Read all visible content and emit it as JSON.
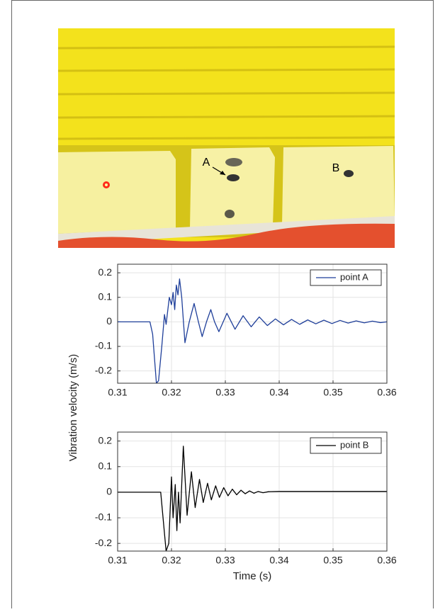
{
  "photo_labels": [
    "A",
    "B"
  ],
  "chart_data": [
    {
      "type": "line",
      "ylabel": "Vibration velocity (m/s)",
      "xlim": [
        0.31,
        0.36
      ],
      "xticks": [
        0.31,
        0.32,
        0.33,
        0.34,
        0.35,
        0.36
      ],
      "ylim": [
        -0.25,
        0.235
      ],
      "yticks": [
        -0.2,
        -0.1,
        0,
        0.1,
        0.2
      ],
      "grid": true,
      "legend": "top-right",
      "series": [
        {
          "name": "point A",
          "color": "#1f3f9a",
          "x": [
            0.31,
            0.316,
            0.3165,
            0.3172,
            0.3176,
            0.3182,
            0.3187,
            0.319,
            0.3196,
            0.32,
            0.3203,
            0.3206,
            0.3209,
            0.3212,
            0.3215,
            0.3219,
            0.3225,
            0.3233,
            0.3242,
            0.325,
            0.3257,
            0.3265,
            0.3273,
            0.328,
            0.3288,
            0.3296,
            0.3303,
            0.3318,
            0.3333,
            0.3348,
            0.3363,
            0.3378,
            0.3393,
            0.3408,
            0.3423,
            0.3438,
            0.3453,
            0.3468,
            0.3483,
            0.3498,
            0.3513,
            0.3528,
            0.3543,
            0.3558,
            0.3573,
            0.3588,
            0.36
          ],
          "values": [
            0,
            0,
            -0.05,
            -0.25,
            -0.24,
            -0.1,
            0.03,
            -0.01,
            0.1,
            0.07,
            0.12,
            0.05,
            0.15,
            0.11,
            0.175,
            0.1,
            -0.085,
            0,
            0.075,
            0,
            -0.06,
            0,
            0.05,
            0,
            -0.04,
            0,
            0.035,
            -0.03,
            0.025,
            -0.02,
            0.02,
            -0.015,
            0.012,
            -0.012,
            0.01,
            -0.01,
            0.008,
            -0.008,
            0.007,
            -0.007,
            0.006,
            -0.005,
            0.004,
            -0.004,
            0.003,
            -0.003,
            0
          ]
        }
      ]
    },
    {
      "type": "line",
      "xlabel": "Time (s)",
      "xlim": [
        0.31,
        0.36
      ],
      "xticks": [
        0.31,
        0.32,
        0.33,
        0.34,
        0.35,
        0.36
      ],
      "ylim": [
        -0.23,
        0.235
      ],
      "yticks": [
        -0.2,
        -0.1,
        0,
        0.1,
        0.2
      ],
      "grid": true,
      "legend": "top-right",
      "series": [
        {
          "name": "point B",
          "color": "#000000",
          "x": [
            0.31,
            0.318,
            0.319,
            0.3195,
            0.32,
            0.3203,
            0.3207,
            0.321,
            0.3213,
            0.3216,
            0.3222,
            0.3229,
            0.3237,
            0.3244,
            0.3252,
            0.3259,
            0.3267,
            0.3274,
            0.3282,
            0.3289,
            0.3297,
            0.3305,
            0.3313,
            0.3321,
            0.3329,
            0.3337,
            0.3345,
            0.3353,
            0.3361,
            0.337,
            0.338,
            0.34,
            0.36
          ],
          "values": [
            0,
            0,
            -0.23,
            -0.2,
            0.06,
            -0.1,
            0.03,
            -0.15,
            0,
            -0.12,
            0.18,
            -0.09,
            0.08,
            -0.06,
            0.05,
            -0.04,
            0.035,
            -0.03,
            0.025,
            -0.02,
            0.018,
            -0.014,
            0.012,
            -0.01,
            0.008,
            -0.006,
            0.005,
            -0.004,
            0.003,
            -0.002,
            0.002,
            0.003,
            0.003
          ]
        }
      ]
    }
  ]
}
